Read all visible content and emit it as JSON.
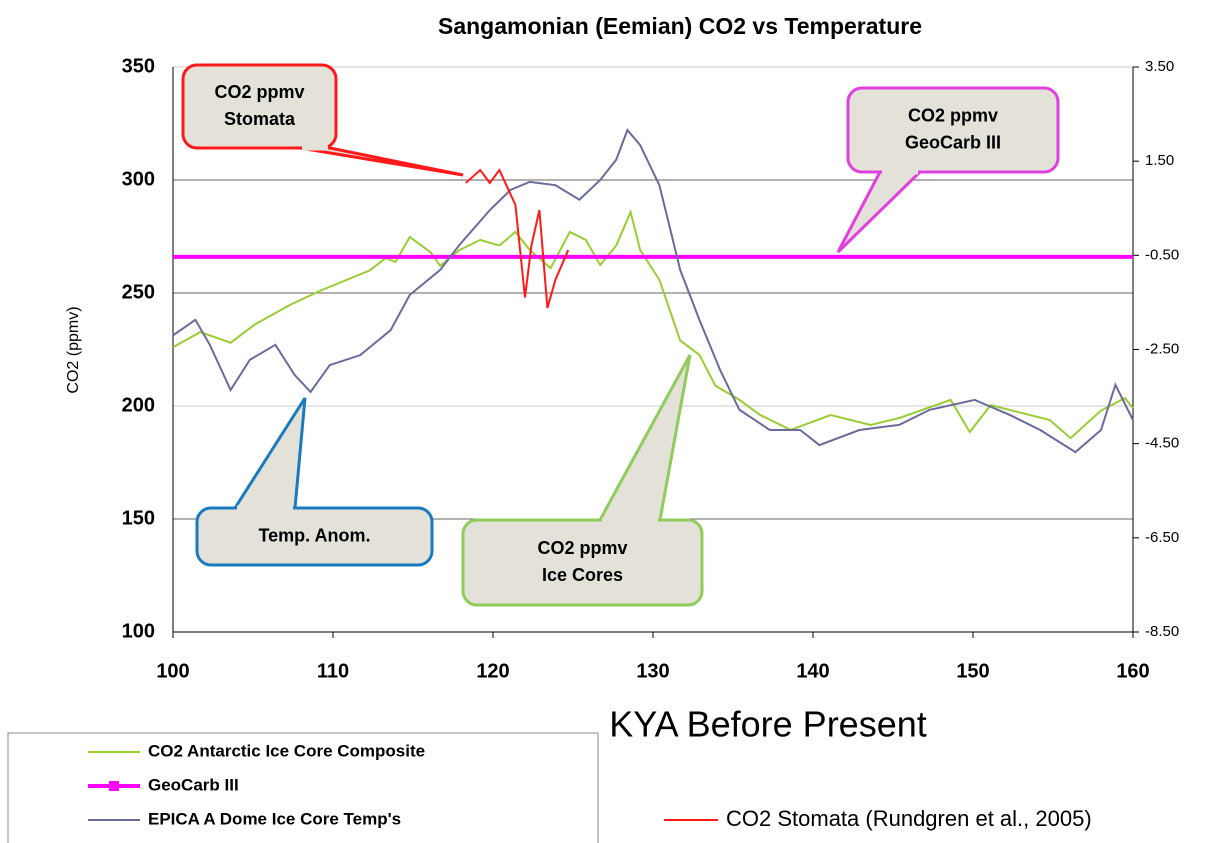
{
  "chart_data": {
    "type": "line",
    "title": "Sangamonian (Eemian) CO2 vs Temperature",
    "x_label": "KYA Before Present",
    "y_label": "CO2 (ppmv)",
    "xlim": [
      100,
      160
    ],
    "xticks": [
      100,
      110,
      120,
      130,
      140,
      150,
      160
    ],
    "ylim": [
      100,
      350
    ],
    "yticks": [
      100,
      150,
      200,
      250,
      300,
      350
    ],
    "y2lim": [
      -8.5,
      3.5
    ],
    "y2ticks": [
      {
        "value": -8.5,
        "label": "-8.50"
      },
      {
        "value": -6.5,
        "label": "-6.50"
      },
      {
        "value": -4.5,
        "label": "-4.50"
      },
      {
        "value": -2.5,
        "label": "-2.50"
      },
      {
        "value": -0.5,
        "label": "-0.50"
      },
      {
        "value": 1.5,
        "label": "1.50"
      },
      {
        "value": 3.5,
        "label": "3.50"
      }
    ],
    "grid": true,
    "series": [
      {
        "name": "CO2 Antarctic Ice Core Composite",
        "color": "#9acd32",
        "x": [
          100,
          101.7,
          103.6,
          105.1,
          107.3,
          109.2,
          112.3,
          113.3,
          113.9,
          114.8,
          116.1,
          116.7,
          117.9,
          119.2,
          120.4,
          121.4,
          122.3,
          123.6,
          124.8,
          125.8,
          126.7,
          127.7,
          128.6,
          129.2,
          130.4,
          131.7,
          132.9,
          133.9,
          135.4,
          136.7,
          138.6,
          141.1,
          143.6,
          145.4,
          148.6,
          149.8,
          151.1,
          154.8,
          156.1,
          158,
          159.5,
          160
        ],
        "values": [
          226,
          232.7,
          228,
          236,
          244.7,
          251,
          260,
          265.5,
          263.7,
          274.8,
          268,
          262,
          269,
          273.5,
          271,
          277,
          269,
          261,
          277,
          273.5,
          262.4,
          271,
          285.8,
          269,
          255.8,
          229,
          222.6,
          209,
          202.7,
          196,
          189.4,
          196,
          191.6,
          194.7,
          202.7,
          188.5,
          200.4,
          193.8,
          185.8,
          198,
          203.5,
          199
        ]
      },
      {
        "name": "GeoCarb III",
        "color": "#ff00ff",
        "x": [
          100,
          160
        ],
        "values": [
          266,
          266
        ]
      },
      {
        "name": "EPICA A Dome Ice Core Temp's",
        "color": "#6a6a9c",
        "axis": "y2",
        "x": [
          100,
          101.4,
          102.3,
          103.6,
          104.8,
          106.4,
          107.6,
          108.6,
          109.8,
          111.7,
          113.6,
          114.8,
          116.7,
          117.9,
          119.8,
          121.1,
          122.3,
          123.9,
          125.4,
          126.7,
          127.7,
          128.4,
          129.2,
          130.4,
          131.7,
          132.9,
          134.2,
          135.4,
          137.3,
          139.2,
          140.4,
          142.9,
          145.4,
          147.3,
          150.1,
          152.3,
          154.2,
          156.4,
          158,
          158.9,
          160
        ],
        "values": [
          -2.2,
          -1.87,
          -2.4,
          -3.36,
          -2.72,
          -2.4,
          -3.04,
          -3.4,
          -2.83,
          -2.62,
          -2.09,
          -1.34,
          -0.81,
          -0.28,
          0.46,
          0.89,
          1.06,
          0.99,
          0.68,
          1.1,
          1.53,
          2.16,
          1.84,
          0.99,
          -0.81,
          -1.87,
          -2.94,
          -3.78,
          -4.21,
          -4.21,
          -4.53,
          -4.21,
          -4.1,
          -3.78,
          -3.57,
          -3.89,
          -4.21,
          -4.68,
          -4.21,
          -3.25,
          -4
        ]
      },
      {
        "name": "CO2 Stomata (Rundgren et al., 2005)",
        "color": "#ff1a1a",
        "x": [
          118.3,
          119.2,
          119.8,
          120.4,
          121.4,
          122,
          122.4,
          122.9,
          123.4,
          123.9,
          124.7
        ],
        "values": [
          298.7,
          304.4,
          298.7,
          304.4,
          289,
          248,
          271,
          286.7,
          243.4,
          255.8,
          269
        ]
      }
    ],
    "annotations": [
      {
        "text": [
          "CO2 ppmv",
          "Stomata"
        ],
        "color": "#ff1a1a"
      },
      {
        "text": [
          "CO2 ppmv",
          "GeoCarb III"
        ],
        "color": "#e040e0"
      },
      {
        "text": [
          "Temp. Anom."
        ],
        "color": "#1a7abf"
      },
      {
        "text": [
          "CO2 ppmv",
          "Ice Cores"
        ],
        "color": "#8fcc5a"
      }
    ]
  }
}
